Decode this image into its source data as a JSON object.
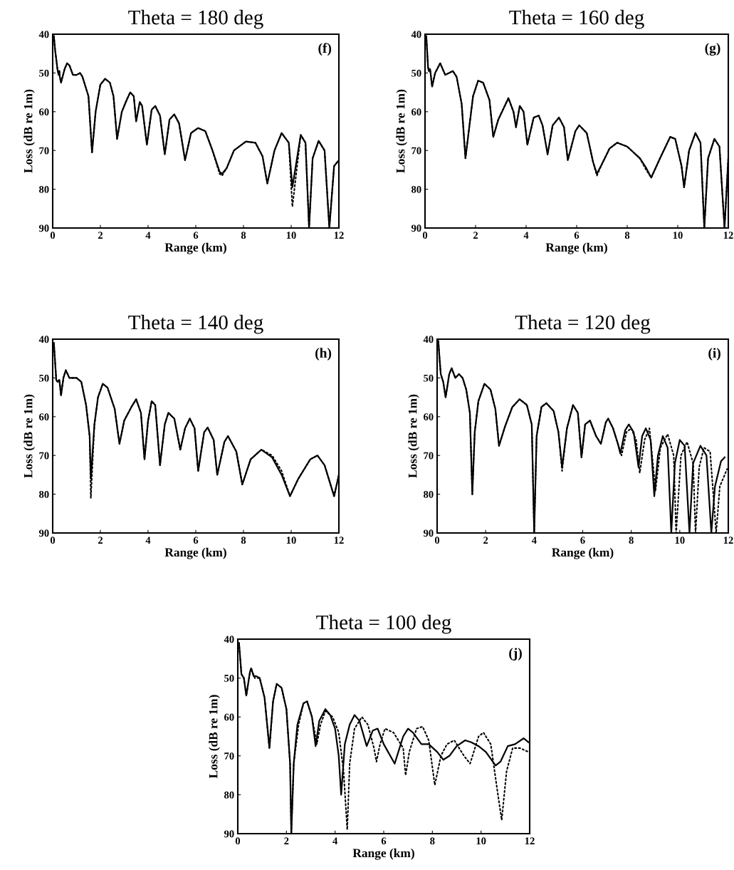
{
  "chart_data": [
    {
      "type": "line",
      "title": "Theta = 180 deg",
      "xlabel": "Range (km)",
      "ylabel": "Loss (dB re 1m)",
      "annotations": [
        "(f)"
      ],
      "xlim": [
        0,
        12
      ],
      "ylim": [
        90,
        40
      ],
      "xticks": [
        0,
        2,
        4,
        6,
        8,
        10,
        12
      ],
      "yticks": [
        40,
        50,
        60,
        70,
        80,
        90
      ],
      "grid": false,
      "series": [
        {
          "color": "#000000",
          "line_style": "dotted",
          "x": [
            0.05,
            0.1,
            0.2,
            0.25,
            0.28,
            0.3,
            0.35,
            0.5,
            0.6,
            0.7,
            0.85,
            1.0,
            1.15,
            1.25,
            1.5,
            1.65,
            1.8,
            2.0,
            2.2,
            2.4,
            2.55,
            2.7,
            2.9,
            3.1,
            3.25,
            3.4,
            3.5,
            3.65,
            3.75,
            3.95,
            4.15,
            4.3,
            4.5,
            4.7,
            4.9,
            5.1,
            5.3,
            5.55,
            5.8,
            6.1,
            6.4,
            6.7,
            7.0,
            7.1,
            7.3,
            7.6,
            8.1,
            8.5,
            8.8,
            9.0,
            9.3,
            9.6,
            9.9,
            10.05,
            10.4,
            10.6,
            10.75,
            10.9,
            11.15,
            11.4,
            11.6,
            11.8,
            12
          ],
          "values": [
            40.5,
            44,
            49,
            50.5,
            49.5,
            51,
            52.5,
            49,
            47.5,
            48,
            50.5,
            50.5,
            50,
            51,
            56,
            70.5,
            60,
            53,
            51.5,
            52.5,
            56,
            67,
            60,
            57,
            55,
            56,
            62.5,
            57.5,
            58.5,
            68.5,
            59.5,
            58.5,
            61,
            71,
            62,
            60.7,
            63,
            72.5,
            65.5,
            64.2,
            65,
            70,
            76,
            76.5,
            74.5,
            70,
            67.7,
            68,
            71.5,
            78.5,
            70,
            65.5,
            68,
            84.5,
            66,
            68,
            90,
            72,
            67.5,
            70,
            90,
            74,
            72.5
          ]
        },
        {
          "color": "#000000",
          "line_style": "solid",
          "x": [
            0.05,
            0.1,
            0.2,
            0.25,
            0.28,
            0.3,
            0.35,
            0.5,
            0.6,
            0.7,
            0.85,
            1.0,
            1.15,
            1.25,
            1.5,
            1.65,
            1.8,
            2.0,
            2.2,
            2.4,
            2.55,
            2.7,
            2.9,
            3.1,
            3.25,
            3.4,
            3.5,
            3.65,
            3.75,
            3.95,
            4.15,
            4.3,
            4.5,
            4.7,
            4.9,
            5.1,
            5.3,
            5.55,
            5.8,
            6.1,
            6.4,
            6.7,
            7.0,
            7.1,
            7.3,
            7.6,
            8.1,
            8.5,
            8.8,
            9.0,
            9.3,
            9.6,
            9.9,
            10.05,
            10.4,
            10.6,
            10.75,
            10.9,
            11.15,
            11.4,
            11.6,
            11.8,
            12
          ],
          "values": [
            40.5,
            44,
            49,
            50.5,
            49.5,
            51,
            52.5,
            49,
            47.5,
            48,
            50.5,
            50.5,
            50,
            51,
            56,
            70.5,
            60,
            53,
            51.5,
            52.5,
            56,
            67,
            60,
            57,
            55,
            56,
            62.5,
            57.5,
            58.5,
            68.5,
            59.5,
            58.5,
            61,
            71,
            62,
            60.7,
            63,
            72.5,
            65.5,
            64.2,
            65,
            70,
            75.5,
            76,
            74.5,
            70,
            67.7,
            68,
            71.5,
            78.5,
            70,
            65.5,
            68,
            79.5,
            66,
            68,
            90,
            72,
            67.5,
            70,
            90,
            74,
            72.5
          ]
        }
      ]
    },
    {
      "type": "line",
      "title": "Theta = 160 deg",
      "xlabel": "Range (km)",
      "ylabel": "Loss (dB re 1m)",
      "annotations": [
        "(g)"
      ],
      "xlim": [
        0,
        12
      ],
      "ylim": [
        90,
        40
      ],
      "xticks": [
        0,
        2,
        4,
        6,
        8,
        10,
        12
      ],
      "yticks": [
        40,
        50,
        60,
        70,
        80,
        90
      ],
      "grid": false,
      "series": [
        {
          "color": "#000000",
          "line_style": "dotted",
          "x": [
            0.05,
            0.12,
            0.15,
            0.2,
            0.28,
            0.4,
            0.6,
            0.8,
            1.1,
            1.25,
            1.45,
            1.6,
            1.9,
            2.1,
            2.3,
            2.55,
            2.7,
            2.9,
            3.3,
            3.5,
            3.6,
            3.75,
            3.9,
            4.05,
            4.3,
            4.5,
            4.65,
            4.85,
            5.05,
            5.3,
            5.5,
            5.65,
            5.95,
            6.1,
            6.4,
            6.65,
            6.8,
            7.0,
            7.3,
            7.6,
            8.0,
            8.5,
            8.75,
            8.95,
            9.3,
            9.7,
            9.9,
            10.15,
            10.25,
            10.45,
            10.7,
            10.9,
            11.05,
            11.2,
            11.45,
            11.65,
            11.85,
            12
          ],
          "values": [
            40.5,
            48.5,
            49.5,
            49,
            53.5,
            50,
            47.5,
            50.5,
            49.5,
            51,
            58,
            72,
            56,
            52,
            52.5,
            57,
            66.5,
            62,
            56.5,
            60,
            64,
            58.5,
            60,
            68.5,
            61.5,
            61,
            63.5,
            71,
            63.5,
            61.5,
            64,
            72.5,
            65,
            63.5,
            65.5,
            73,
            76.5,
            73.5,
            69.5,
            68,
            69,
            72,
            75,
            77,
            72,
            66.5,
            67,
            74,
            79.5,
            70,
            65.5,
            68,
            90,
            72,
            67,
            69,
            90,
            72
          ]
        },
        {
          "color": "#000000",
          "line_style": "solid",
          "x": [
            0.05,
            0.12,
            0.15,
            0.2,
            0.28,
            0.4,
            0.6,
            0.8,
            1.1,
            1.25,
            1.45,
            1.6,
            1.9,
            2.1,
            2.3,
            2.55,
            2.7,
            2.9,
            3.3,
            3.5,
            3.6,
            3.75,
            3.9,
            4.05,
            4.3,
            4.5,
            4.65,
            4.85,
            5.05,
            5.3,
            5.5,
            5.65,
            5.95,
            6.1,
            6.4,
            6.65,
            6.8,
            7.0,
            7.3,
            7.6,
            8.0,
            8.5,
            8.75,
            8.95,
            9.3,
            9.7,
            9.9,
            10.15,
            10.25,
            10.45,
            10.7,
            10.9,
            11.05,
            11.2,
            11.45,
            11.65,
            11.85,
            12
          ],
          "values": [
            40.5,
            48.5,
            49.5,
            49,
            53.5,
            50,
            47.5,
            50.5,
            49.5,
            51,
            58,
            72,
            56,
            52,
            52.5,
            57,
            66.5,
            62,
            56.5,
            60,
            64,
            58.5,
            60,
            68.5,
            61.5,
            61,
            63.5,
            71,
            63.5,
            61.5,
            64,
            72.5,
            65,
            63.5,
            65.5,
            73,
            76,
            73.5,
            69.5,
            68,
            69,
            72,
            74.5,
            77,
            72,
            66.5,
            67,
            74,
            79.5,
            70,
            65.5,
            68,
            90,
            72,
            67,
            69,
            90,
            72
          ]
        }
      ]
    },
    {
      "type": "line",
      "title": "Theta = 140 deg",
      "xlabel": "Range (km)",
      "ylabel": "Loss (dB re 1m)",
      "annotations": [
        "(h)"
      ],
      "xlim": [
        0,
        12
      ],
      "ylim": [
        90,
        40
      ],
      "xticks": [
        0,
        2,
        4,
        6,
        8,
        10,
        12
      ],
      "yticks": [
        40,
        50,
        60,
        70,
        80,
        90
      ],
      "grid": false,
      "series": [
        {
          "color": "#000000",
          "line_style": "dotted",
          "x": [
            0.05,
            0.15,
            0.2,
            0.28,
            0.35,
            0.45,
            0.55,
            0.7,
            1.0,
            1.2,
            1.4,
            1.55,
            1.6,
            1.75,
            1.9,
            2.1,
            2.3,
            2.6,
            2.8,
            3.0,
            3.3,
            3.5,
            3.7,
            3.85,
            4.0,
            4.15,
            4.3,
            4.5,
            4.7,
            4.85,
            5.1,
            5.35,
            5.55,
            5.75,
            5.95,
            6.1,
            6.35,
            6.5,
            6.75,
            6.9,
            7.2,
            7.35,
            7.7,
            7.95,
            8.3,
            8.75,
            9.2,
            9.6,
            9.95,
            10.3,
            10.5,
            10.8,
            11.1,
            11.4,
            11.8,
            12
          ],
          "values": [
            41,
            50.5,
            51,
            50.5,
            54.5,
            50,
            48,
            50,
            50,
            51,
            57,
            65,
            81,
            62,
            55,
            51.5,
            52.5,
            58,
            67,
            61,
            57.5,
            55.5,
            59,
            71,
            61,
            56,
            57,
            72.5,
            62,
            59,
            60.5,
            68.5,
            63,
            60.5,
            63,
            74,
            64,
            62.8,
            66,
            75,
            66.5,
            65,
            69,
            77.5,
            71,
            68.5,
            70,
            74,
            80.5,
            76,
            74,
            71,
            70,
            72.5,
            80.5,
            75
          ]
        },
        {
          "color": "#000000",
          "line_style": "solid",
          "x": [
            0.05,
            0.15,
            0.2,
            0.28,
            0.35,
            0.45,
            0.55,
            0.7,
            1.0,
            1.2,
            1.4,
            1.55,
            1.6,
            1.75,
            1.9,
            2.1,
            2.3,
            2.6,
            2.8,
            3.0,
            3.3,
            3.5,
            3.7,
            3.85,
            4.0,
            4.15,
            4.3,
            4.5,
            4.7,
            4.85,
            5.1,
            5.35,
            5.55,
            5.75,
            5.95,
            6.1,
            6.35,
            6.5,
            6.75,
            6.9,
            7.2,
            7.35,
            7.7,
            7.95,
            8.3,
            8.75,
            9.2,
            9.6,
            9.95,
            10.3,
            10.5,
            10.8,
            11.1,
            11.4,
            11.8,
            12
          ],
          "values": [
            41,
            50.5,
            51,
            50.5,
            54.5,
            50,
            48,
            50,
            50,
            51,
            57,
            65,
            76,
            62,
            55,
            51.5,
            52.5,
            58,
            67,
            61,
            57.5,
            55.5,
            59,
            71,
            61,
            56,
            57,
            72.5,
            62,
            59,
            60.5,
            68.5,
            63,
            60.5,
            63,
            74,
            64,
            62.8,
            66,
            75,
            66.5,
            65,
            69,
            77.5,
            71,
            68.5,
            70.5,
            75,
            80.5,
            76,
            74,
            71,
            70,
            72.5,
            80.5,
            75
          ]
        }
      ]
    },
    {
      "type": "line",
      "title": "Theta = 120 deg",
      "xlabel": "Range (km)",
      "ylabel": "Loss (dB re 1m)",
      "annotations": [
        "(i)"
      ],
      "xlim": [
        0,
        12
      ],
      "ylim": [
        90,
        40
      ],
      "xticks": [
        0,
        2,
        4,
        6,
        8,
        10,
        12
      ],
      "yticks": [
        40,
        50,
        60,
        70,
        80,
        90
      ],
      "grid": false,
      "series": [
        {
          "color": "#000000",
          "line_style": "dotted",
          "x": [
            0.05,
            0.1,
            0.15,
            0.25,
            0.35,
            0.5,
            0.6,
            0.75,
            0.9,
            1.05,
            1.2,
            1.35,
            1.45,
            1.55,
            1.7,
            1.95,
            2.2,
            2.4,
            2.55,
            2.8,
            3.1,
            3.4,
            3.7,
            3.9,
            4.0,
            4.1,
            4.3,
            4.5,
            4.8,
            5.0,
            5.15,
            5.35,
            5.6,
            5.8,
            5.95,
            6.1,
            6.3,
            6.55,
            6.75,
            6.95,
            7.05,
            7.25,
            7.45,
            7.6,
            7.8,
            8.0,
            8.2,
            8.35,
            8.55,
            8.75,
            9.0,
            9.2,
            9.5,
            9.75,
            9.85,
            10.05,
            10.3,
            10.55,
            10.65,
            10.8,
            11.0,
            11.25,
            11.5,
            11.65,
            11.95
          ],
          "values": [
            40.5,
            45,
            49,
            51,
            55,
            49,
            47.5,
            50,
            49,
            50,
            53,
            59,
            80,
            64,
            56,
            51.5,
            53,
            58,
            67.5,
            62.5,
            57.5,
            55.5,
            57,
            62,
            90,
            65,
            57.5,
            56.5,
            58.5,
            64,
            74,
            63,
            57,
            59,
            70.5,
            62,
            61,
            65,
            67,
            61.5,
            60.5,
            63,
            67,
            70,
            64,
            63,
            66,
            74.5,
            66,
            63,
            79,
            68,
            64.5,
            70,
            90,
            70,
            66.5,
            72,
            90,
            73,
            68,
            69,
            90,
            78,
            73.5
          ]
        },
        {
          "color": "#000000",
          "line_style": "solid",
          "x": [
            0.05,
            0.1,
            0.15,
            0.25,
            0.35,
            0.5,
            0.6,
            0.75,
            0.9,
            1.05,
            1.2,
            1.35,
            1.45,
            1.55,
            1.7,
            1.95,
            2.2,
            2.4,
            2.55,
            2.8,
            3.1,
            3.4,
            3.7,
            3.9,
            4.0,
            4.1,
            4.3,
            4.5,
            4.8,
            5.0,
            5.15,
            5.35,
            5.6,
            5.8,
            5.95,
            6.1,
            6.3,
            6.55,
            6.75,
            6.95,
            7.05,
            7.25,
            7.45,
            7.55,
            7.75,
            7.9,
            8.1,
            8.3,
            8.45,
            8.6,
            8.8,
            8.95,
            9.1,
            9.3,
            9.5,
            9.65,
            9.8,
            10.0,
            10.2,
            10.4,
            10.55,
            10.85,
            11.1,
            11.3,
            11.45,
            11.7,
            11.85
          ],
          "values": [
            40.5,
            45,
            49,
            51,
            55,
            49,
            47.5,
            50,
            49,
            50,
            53,
            59,
            80,
            64,
            56,
            51.5,
            53,
            58,
            67.5,
            62.5,
            57.5,
            55.5,
            57,
            62,
            90,
            65,
            57.5,
            56.5,
            58.5,
            64,
            73,
            63,
            57,
            59,
            70.5,
            62,
            61,
            65,
            67,
            61.5,
            60.5,
            63,
            67,
            69.5,
            63.5,
            62,
            64,
            73,
            65,
            63,
            66,
            80.5,
            70,
            65,
            68,
            90,
            72,
            66,
            67.5,
            90,
            72,
            67.5,
            70,
            90,
            78,
            71.5,
            70.5
          ]
        }
      ]
    },
    {
      "type": "line",
      "title": "Theta = 100 deg",
      "xlabel": "Range (km)",
      "ylabel": "Loss (dB re 1m)",
      "annotations": [
        "(j)"
      ],
      "xlim": [
        0,
        12
      ],
      "ylim": [
        90,
        40
      ],
      "xticks": [
        0,
        2,
        4,
        6,
        8,
        10,
        12
      ],
      "yticks": [
        40,
        50,
        60,
        70,
        80,
        90
      ],
      "grid": false,
      "series": [
        {
          "color": "#000000",
          "line_style": "dotted",
          "x": [
            0.05,
            0.15,
            0.25,
            0.35,
            0.5,
            0.55,
            0.7,
            0.9,
            1.1,
            1.3,
            1.45,
            1.6,
            1.8,
            2.0,
            2.15,
            2.2,
            2.3,
            2.5,
            2.7,
            2.85,
            3.05,
            3.25,
            3.4,
            3.6,
            3.9,
            4.15,
            4.35,
            4.5,
            4.6,
            4.8,
            5.1,
            5.35,
            5.6,
            5.7,
            5.85,
            6.05,
            6.4,
            6.8,
            6.9,
            7.05,
            7.35,
            7.6,
            7.85,
            8.1,
            8.35,
            8.6,
            8.9,
            9.3,
            9.55,
            9.9,
            10.1,
            10.4,
            10.65,
            10.85,
            11.05,
            11.3,
            11.6,
            11.95
          ],
          "values": [
            41,
            49,
            50,
            54.5,
            48.5,
            47.5,
            50,
            50,
            55,
            68,
            56,
            51.5,
            52.5,
            58,
            72,
            90,
            72,
            62,
            56.5,
            56,
            60,
            67,
            62,
            58.5,
            60,
            64,
            74,
            89,
            72,
            63,
            60,
            62,
            68,
            71.5,
            67,
            63,
            64,
            68,
            75,
            69,
            63,
            62.5,
            66,
            77.5,
            70,
            67,
            66,
            70,
            72,
            65,
            64,
            67,
            78,
            86.5,
            74,
            68,
            68,
            69
          ]
        },
        {
          "color": "#000000",
          "line_style": "solid",
          "x": [
            0.05,
            0.15,
            0.25,
            0.35,
            0.5,
            0.55,
            0.65,
            0.75,
            0.9,
            1.1,
            1.3,
            1.45,
            1.6,
            1.8,
            2.0,
            2.15,
            2.2,
            2.3,
            2.45,
            2.7,
            2.85,
            3.05,
            3.2,
            3.35,
            3.6,
            3.8,
            4.0,
            4.15,
            4.25,
            4.4,
            4.6,
            4.8,
            5.0,
            5.3,
            5.55,
            5.75,
            6.0,
            6.45,
            6.8,
            7.0,
            7.2,
            7.55,
            7.85,
            8.2,
            8.45,
            8.7,
            9.0,
            9.35,
            9.6,
            9.9,
            10.2,
            10.6,
            10.8,
            11.1,
            11.4,
            11.75,
            11.95
          ],
          "values": [
            41,
            49,
            50,
            54.5,
            48.5,
            47.5,
            49.5,
            49.5,
            50,
            55,
            68,
            56,
            51.5,
            52.5,
            58,
            72,
            90,
            72,
            62,
            56.5,
            56,
            60,
            67.5,
            61,
            58,
            59.5,
            63,
            70,
            80,
            67,
            62,
            59.5,
            61,
            67.5,
            63.5,
            63,
            67,
            72,
            65,
            63,
            64,
            67,
            67,
            69,
            71,
            70,
            67.5,
            66,
            66.5,
            67.5,
            69,
            72.5,
            71.5,
            67.5,
            67,
            65.5,
            66.5
          ]
        }
      ]
    }
  ]
}
